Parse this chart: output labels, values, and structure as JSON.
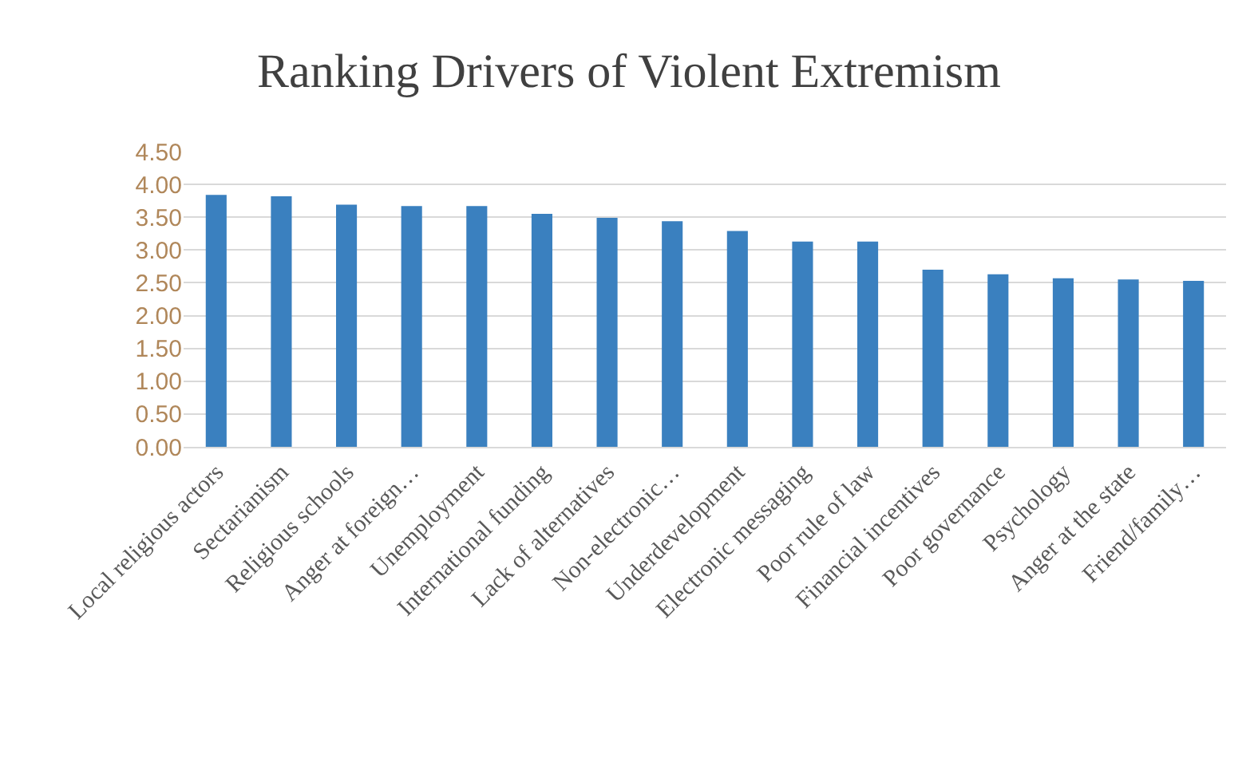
{
  "chart_data": {
    "type": "bar",
    "title": "Ranking Drivers of Violent Extremism",
    "categories": [
      "Local religious actors",
      "Sectarianism",
      "Religious schools",
      "Anger at foreign…",
      "Unemployment",
      "International funding",
      "Lack of alternatives",
      "Non-electronic…",
      "Underdevelopment",
      "Electronic messaging",
      "Poor rule of law",
      "Financial incentives",
      "Poor governance",
      "Psychology",
      "Anger at the state",
      "Friend/family…"
    ],
    "values": [
      3.84,
      3.82,
      3.69,
      3.67,
      3.67,
      3.55,
      3.49,
      3.44,
      3.29,
      3.13,
      3.13,
      2.7,
      2.63,
      2.57,
      2.55,
      2.53
    ],
    "color": "#3a80bf",
    "ylim": [
      0,
      4.5
    ],
    "yticks": [
      {
        "value": 0,
        "label": "0.00"
      },
      {
        "value": 0.5,
        "label": "0.50"
      },
      {
        "value": 1,
        "label": "1.00"
      },
      {
        "value": 1.5,
        "label": "1.50"
      },
      {
        "value": 2,
        "label": "2.00"
      },
      {
        "value": 2.5,
        "label": "2.50"
      },
      {
        "value": 3,
        "label": "3.00"
      },
      {
        "value": 3.5,
        "label": "3.50"
      },
      {
        "value": 4,
        "label": "4.00"
      },
      {
        "value": 4.5,
        "label": "4.50"
      }
    ],
    "grid": "y"
  }
}
